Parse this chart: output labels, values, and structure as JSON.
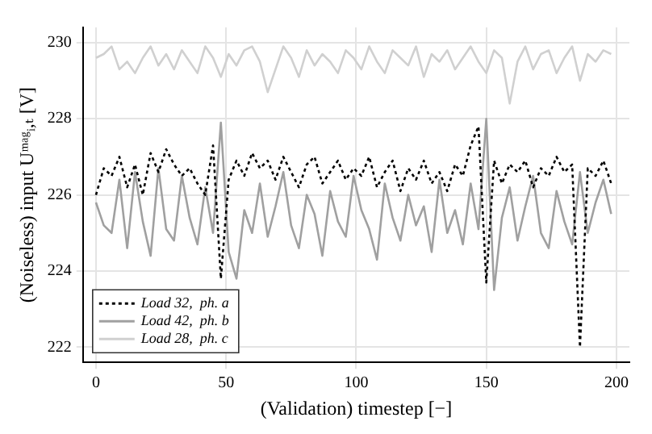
{
  "chart_data": {
    "type": "line",
    "xlabel": "(Validation) timestep [−]",
    "ylabel": "(Noiseless) input Uᵐᵃᵍᵢ,ₜ [V]",
    "x": [
      0,
      3,
      6,
      9,
      12,
      15,
      18,
      21,
      24,
      27,
      30,
      33,
      36,
      39,
      42,
      45,
      48,
      51,
      54,
      57,
      60,
      63,
      66,
      69,
      72,
      75,
      78,
      81,
      84,
      87,
      90,
      93,
      96,
      99,
      102,
      105,
      108,
      111,
      114,
      117,
      120,
      123,
      126,
      129,
      132,
      135,
      138,
      141,
      144,
      147,
      150,
      153,
      156,
      159,
      162,
      165,
      168,
      171,
      174,
      177,
      180,
      183,
      186,
      189,
      192,
      195,
      198
    ],
    "series": [
      {
        "name": "Load 32,  ph. a",
        "color": "#000000",
        "line_style": "dotted",
        "values": [
          226.0,
          226.7,
          226.5,
          227.0,
          226.2,
          226.8,
          226.0,
          227.1,
          226.6,
          227.2,
          226.8,
          226.5,
          226.7,
          226.3,
          226.0,
          227.3,
          223.8,
          226.4,
          226.9,
          226.5,
          227.1,
          226.7,
          226.9,
          226.4,
          227.0,
          226.6,
          226.2,
          226.8,
          227.0,
          226.3,
          226.6,
          226.9,
          226.4,
          226.7,
          226.5,
          227.0,
          226.2,
          226.6,
          226.9,
          226.1,
          226.7,
          226.4,
          226.9,
          226.3,
          226.6,
          226.1,
          226.8,
          226.5,
          227.3,
          227.8,
          223.7,
          226.9,
          226.3,
          226.8,
          226.6,
          226.9,
          226.2,
          226.7,
          226.5,
          227.0,
          226.6,
          226.8,
          222.0,
          226.7,
          226.5,
          226.9,
          226.3
        ]
      },
      {
        "name": "Load 42,  ph. b",
        "color": "#a0a0a0",
        "line_style": "solid",
        "values": [
          225.8,
          225.2,
          225.0,
          226.4,
          224.6,
          226.6,
          225.3,
          224.4,
          226.7,
          225.1,
          224.8,
          226.5,
          225.4,
          224.7,
          226.2,
          225.0,
          227.9,
          224.5,
          223.8,
          225.6,
          225.0,
          226.3,
          224.9,
          225.7,
          226.6,
          225.2,
          224.6,
          226.0,
          225.5,
          224.4,
          226.1,
          225.3,
          224.9,
          226.5,
          225.6,
          225.1,
          224.3,
          226.3,
          225.4,
          224.8,
          226.0,
          225.2,
          225.7,
          224.5,
          226.4,
          225.0,
          225.6,
          224.7,
          226.3,
          225.1,
          228.0,
          223.5,
          225.4,
          226.2,
          224.8,
          225.7,
          226.5,
          225.0,
          224.6,
          226.1,
          225.3,
          224.7,
          226.6,
          225.0,
          225.8,
          226.4,
          225.5
        ]
      },
      {
        "name": "Load 28,  ph. c",
        "color": "#d0d0d0",
        "line_style": "solid",
        "values": [
          229.6,
          229.7,
          229.9,
          229.3,
          229.5,
          229.2,
          229.6,
          229.9,
          229.4,
          229.7,
          229.3,
          229.8,
          229.5,
          229.2,
          229.9,
          229.6,
          229.1,
          229.7,
          229.4,
          229.8,
          229.9,
          229.5,
          228.7,
          229.3,
          229.9,
          229.6,
          229.1,
          229.8,
          229.4,
          229.7,
          229.5,
          229.2,
          229.8,
          229.6,
          229.3,
          229.9,
          229.5,
          229.2,
          229.8,
          229.6,
          229.4,
          229.9,
          229.1,
          229.7,
          229.5,
          229.8,
          229.3,
          229.6,
          229.9,
          229.5,
          229.2,
          229.8,
          229.6,
          228.4,
          229.5,
          229.9,
          229.3,
          229.7,
          229.8,
          229.2,
          229.6,
          229.9,
          229.0,
          229.7,
          229.5,
          229.8,
          229.7
        ]
      }
    ],
    "xlim": [
      -5,
      205
    ],
    "xticks": [
      0,
      50,
      100,
      150,
      200
    ],
    "ylim": [
      221.6,
      230.4
    ],
    "yticks": [
      222,
      224,
      226,
      228,
      230
    ],
    "grid": true,
    "legend": "bottom left",
    "marker": "none"
  }
}
